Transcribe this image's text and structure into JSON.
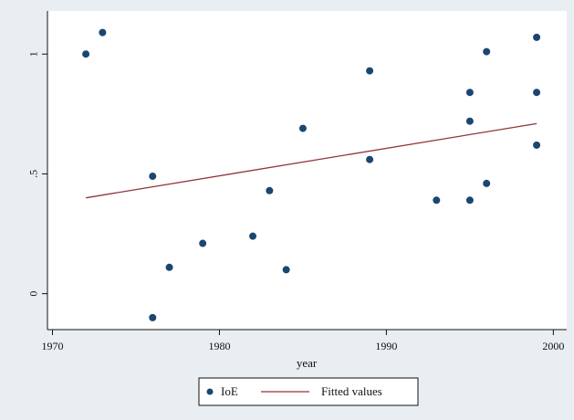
{
  "chart_data": {
    "type": "scatter",
    "title": "",
    "xlabel": "year",
    "ylabel": "",
    "xlim": [
      1969.7,
      2000.8
    ],
    "ylim": [
      -0.15,
      1.18
    ],
    "grid": false,
    "legend_position": "bottom",
    "x_ticks": [
      {
        "value": 1970,
        "label": "1970"
      },
      {
        "value": 1980,
        "label": "1980"
      },
      {
        "value": 1990,
        "label": "1990"
      },
      {
        "value": 2000,
        "label": "2000"
      }
    ],
    "y_ticks": [
      {
        "value": 0,
        "label": "0"
      },
      {
        "value": 0.5,
        "label": ".5"
      },
      {
        "value": 1,
        "label": "1"
      }
    ],
    "series": [
      {
        "name": "IoE",
        "kind": "scatter",
        "color": "#1a476f",
        "points": [
          {
            "x": 1972,
            "y": 1.0
          },
          {
            "x": 1973,
            "y": 1.09
          },
          {
            "x": 1976,
            "y": 0.49
          },
          {
            "x": 1976,
            "y": -0.1
          },
          {
            "x": 1977,
            "y": 0.11
          },
          {
            "x": 1979,
            "y": 0.21
          },
          {
            "x": 1982,
            "y": 0.24
          },
          {
            "x": 1983,
            "y": 0.43
          },
          {
            "x": 1984,
            "y": 0.1
          },
          {
            "x": 1985,
            "y": 0.69
          },
          {
            "x": 1989,
            "y": 0.93
          },
          {
            "x": 1989,
            "y": 0.56
          },
          {
            "x": 1993,
            "y": 0.39
          },
          {
            "x": 1995,
            "y": 0.84
          },
          {
            "x": 1995,
            "y": 0.72
          },
          {
            "x": 1995,
            "y": 0.39
          },
          {
            "x": 1996,
            "y": 1.01
          },
          {
            "x": 1996,
            "y": 0.46
          },
          {
            "x": 1999,
            "y": 1.07
          },
          {
            "x": 1999,
            "y": 0.84
          },
          {
            "x": 1999,
            "y": 0.62
          }
        ]
      },
      {
        "name": "Fitted values",
        "kind": "line",
        "color": "#90353b",
        "points": [
          {
            "x": 1972,
            "y": 0.4
          },
          {
            "x": 1999,
            "y": 0.71
          }
        ]
      }
    ]
  },
  "colors": {
    "outer_background": "#e8eef2",
    "plot_background": "#ffffff",
    "axis": "#111111"
  }
}
